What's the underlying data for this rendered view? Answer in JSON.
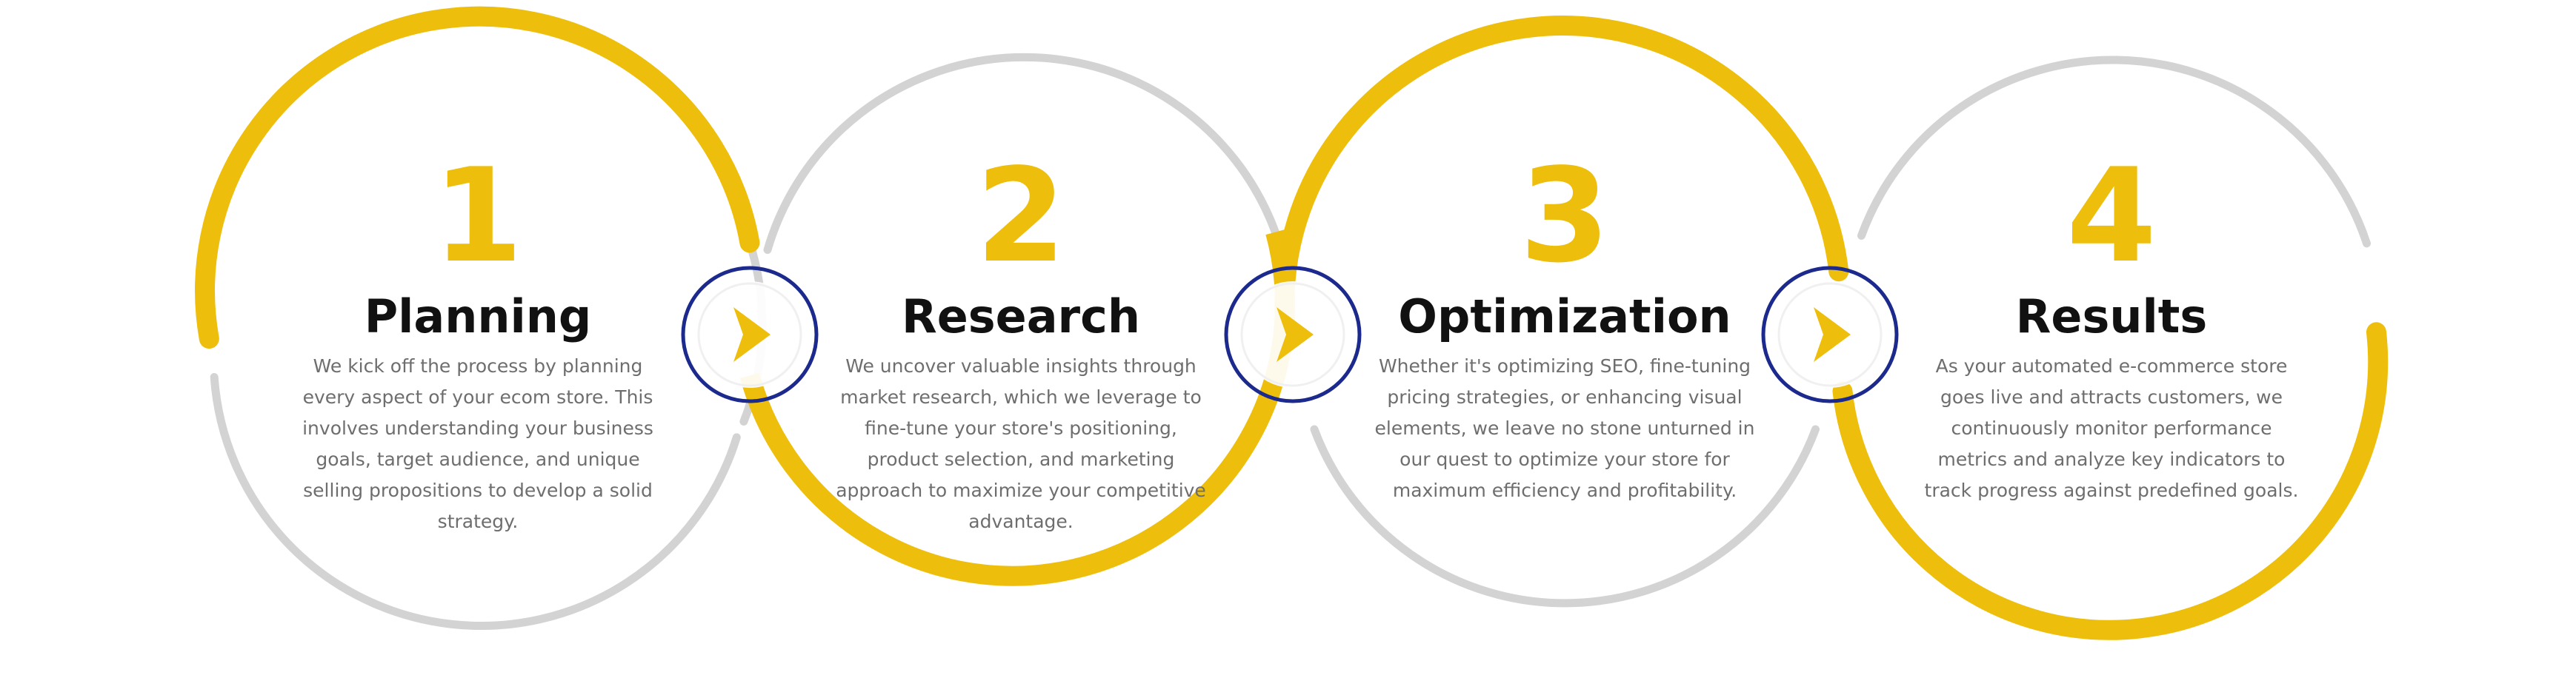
{
  "colors": {
    "accent": "#EDBE0C",
    "ring_gray": "#D3D3D3",
    "arrow_circle": "#1B2A8C",
    "title": "#111111",
    "body_text": "#6E6E6E"
  },
  "steps": [
    {
      "number": "1",
      "title": "Planning",
      "description": "We kick off the process by planning every aspect of your ecom store. This involves understanding your business goals, target audience, and unique selling propositions to develop a solid strategy."
    },
    {
      "number": "2",
      "title": "Research",
      "description": "We uncover valuable insights through market research, which we leverage to fine-tune your store's positioning, product selection, and marketing approach to maximize your competitive advantage."
    },
    {
      "number": "3",
      "title": "Optimization",
      "description": "Whether it's optimizing SEO, fine-tuning pricing strategies, or enhancing visual elements, we leave no stone unturned in our quest to optimize your store for maximum efficiency and profitability."
    },
    {
      "number": "4",
      "title": "Results",
      "description": "As your automated e-commerce store goes live and attracts customers, we continuously monitor performance metrics and analyze key indicators to track progress against predefined goals."
    }
  ],
  "connectors": [
    {
      "icon": "play-arrow-icon"
    },
    {
      "icon": "play-arrow-icon"
    },
    {
      "icon": "play-arrow-icon"
    }
  ]
}
